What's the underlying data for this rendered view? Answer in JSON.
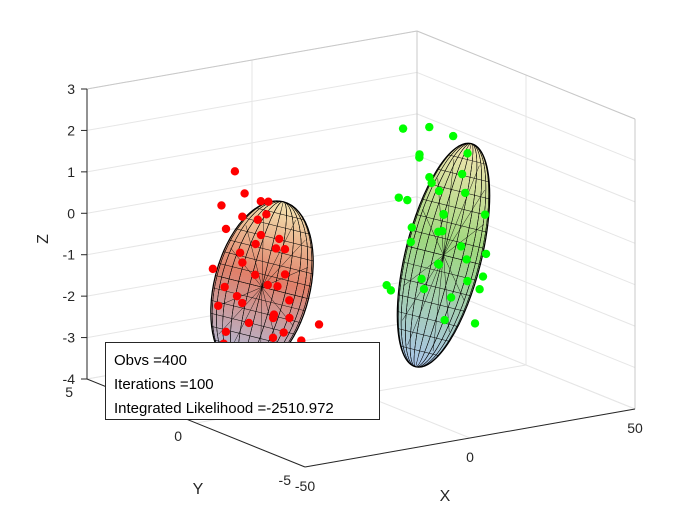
{
  "chart_data": {
    "type": "scatter",
    "view": "3d",
    "title": "",
    "xlabel": "X",
    "ylabel": "Y",
    "zlabel": "Z",
    "xlim": [
      -50,
      50
    ],
    "ylim": [
      -5,
      5
    ],
    "zlim": [
      -4,
      3
    ],
    "x_ticks": [
      "-50",
      "0",
      "50"
    ],
    "y_ticks": [
      "-5",
      "0",
      "5"
    ],
    "z_ticks": [
      "-4",
      "-3",
      "-2",
      "-1",
      "0",
      "1",
      "2",
      "3"
    ],
    "grid": true,
    "colors": {
      "cluster_1": "#ff0000",
      "cluster_2": "#00ff00",
      "ellipsoid_1": "#e0806a",
      "ellipsoid_2": "#9fd87f",
      "mesh": "#000000"
    },
    "ellipsoids": [
      {
        "color": "#e0806a",
        "center": [
          -30,
          0,
          -1
        ]
      },
      {
        "color": "#9fd87f",
        "center": [
          25,
          0,
          -1
        ]
      }
    ],
    "series": [
      {
        "color": "#ff0000",
        "points": [
          [
            -36,
            -1.2,
            1.4
          ],
          [
            -33,
            -0.4,
            1.2
          ],
          [
            -37,
            0.8,
            0.9
          ],
          [
            -28,
            1.1,
            1.0
          ],
          [
            -30,
            -0.2,
            0.8
          ],
          [
            -32,
            0.6,
            0.6
          ],
          [
            -26,
            0.8,
            0.4
          ],
          [
            -35,
            -1.4,
            0.3
          ],
          [
            -29,
            0.2,
            0.2
          ],
          [
            -31,
            1.5,
            0.1
          ],
          [
            -27,
            -0.6,
            0.0
          ],
          [
            -34,
            0.4,
            -0.2
          ],
          [
            -24,
            1.2,
            -0.3
          ],
          [
            -38,
            -0.9,
            -0.4
          ],
          [
            -30,
            0.9,
            -0.6
          ],
          [
            -25,
            -0.3,
            -0.7
          ],
          [
            -33,
            1.8,
            -0.9
          ],
          [
            -29,
            -1.1,
            -1.1
          ],
          [
            -22,
            0.5,
            -1.2
          ],
          [
            -36,
            0.0,
            -1.3
          ],
          [
            -31,
            -0.7,
            -1.5
          ],
          [
            -27,
            1.6,
            -1.6
          ],
          [
            -34,
            -1.6,
            -1.7
          ],
          [
            -23,
            -0.2,
            -1.8
          ],
          [
            -32,
            0.3,
            -1.9
          ],
          [
            -28,
            -1.5,
            -2.0
          ],
          [
            -20,
            1.0,
            -2.1
          ],
          [
            -35,
            0.9,
            -2.2
          ],
          [
            -26,
            0.1,
            -2.3
          ],
          [
            -30,
            -0.5,
            -2.4
          ],
          [
            -24,
            -1.0,
            -2.5
          ],
          [
            -33,
            1.3,
            -2.6
          ],
          [
            -21,
            0.4,
            -2.7
          ],
          [
            -29,
            1.9,
            -2.8
          ],
          [
            -18,
            -0.8,
            -1.9
          ],
          [
            -40,
            0.2,
            -0.9
          ],
          [
            -38,
            -2.0,
            0.7
          ],
          [
            -25,
            2.0,
            1.3
          ],
          [
            -36,
            1.1,
            -1.6
          ],
          [
            -19,
            1.4,
            -1.4
          ]
        ]
      },
      {
        "color": "#00ff00",
        "points": [
          [
            20,
            -1.2,
            2.2
          ],
          [
            24,
            0.5,
            2.0
          ],
          [
            22,
            1.4,
            1.8
          ],
          [
            27,
            -0.8,
            1.6
          ],
          [
            19,
            0.2,
            1.4
          ],
          [
            25,
            1.1,
            1.2
          ],
          [
            28,
            -0.4,
            1.0
          ],
          [
            21,
            -1.6,
            0.9
          ],
          [
            26,
            0.8,
            0.7
          ],
          [
            23,
            -0.1,
            0.6
          ],
          [
            30,
            1.3,
            0.4
          ],
          [
            18,
            0.6,
            0.3
          ],
          [
            29,
            -1.3,
            0.2
          ],
          [
            24,
            1.9,
            0.0
          ],
          [
            27,
            0.3,
            -0.1
          ],
          [
            20,
            -0.7,
            -0.2
          ],
          [
            31,
            0.9,
            -0.3
          ],
          [
            22,
            1.0,
            -0.5
          ],
          [
            26,
            -1.8,
            -0.6
          ],
          [
            29,
            -0.2,
            -0.8
          ],
          [
            17,
            -1.0,
            -0.9
          ],
          [
            25,
            1.5,
            -1.0
          ],
          [
            32,
            0.0,
            -1.2
          ],
          [
            23,
            -1.4,
            -1.3
          ],
          [
            28,
            0.7,
            -1.4
          ],
          [
            21,
            0.4,
            -1.6
          ],
          [
            30,
            -0.9,
            -1.7
          ],
          [
            24,
            -0.5,
            -1.9
          ],
          [
            19,
            1.7,
            -2.0
          ],
          [
            27,
            1.2,
            -2.1
          ],
          [
            22,
            -1.9,
            -2.2
          ],
          [
            33,
            -0.6,
            -1.5
          ],
          [
            26,
            0.1,
            -2.6
          ],
          [
            15,
            0.9,
            -1.9
          ],
          [
            34,
            1.6,
            -0.9
          ]
        ]
      }
    ]
  },
  "annotation": {
    "obvs": "Obvs =400",
    "iterations": "Iterations =100",
    "likelihood": "Integrated Likelihood =-2510.972"
  }
}
